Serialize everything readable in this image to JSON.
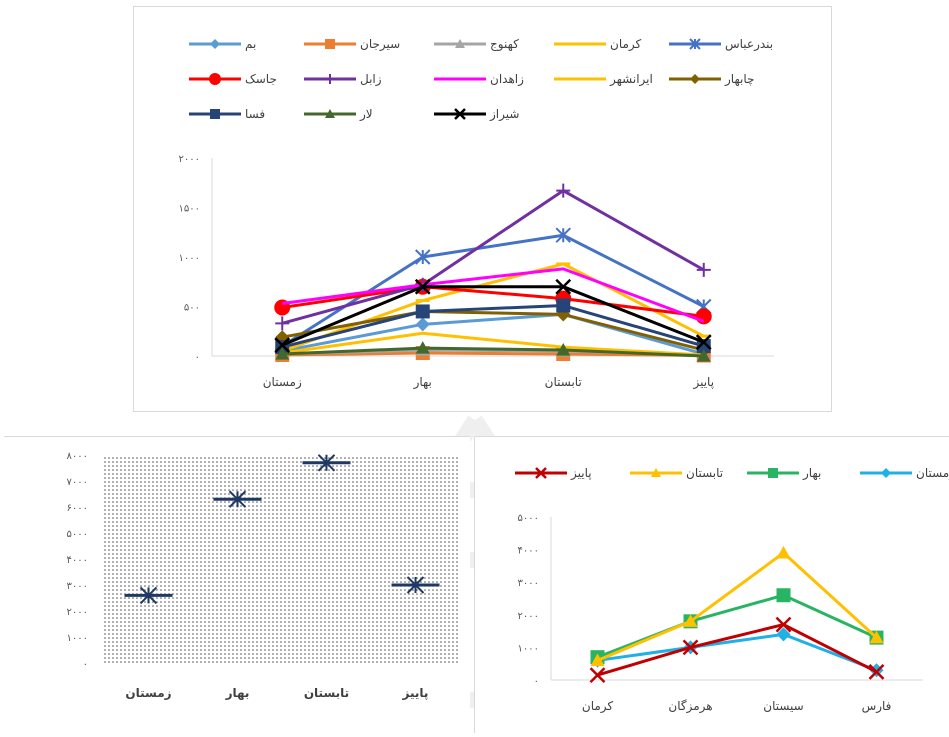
{
  "chart_data": [
    {
      "type": "line",
      "categories": [
        "زمستان",
        "بهار",
        "تابستان",
        "پاییز"
      ],
      "ylim": [
        0,
        2000
      ],
      "yticks": [
        "۰",
        "۵۰۰",
        "۱۰۰۰",
        "۱۵۰۰",
        "۲۰۰۰"
      ],
      "legend_position": "top",
      "series": [
        {
          "name": "بم",
          "color": "#5b9bd5",
          "marker": "diamond",
          "values": [
            50,
            320,
            420,
            20
          ]
        },
        {
          "name": "سیرجان",
          "color": "#ed7d31",
          "marker": "square",
          "values": [
            10,
            30,
            20,
            5
          ]
        },
        {
          "name": "کهنوج",
          "color": "#a5a5a5",
          "marker": "triangle",
          "values": [
            20,
            60,
            50,
            10
          ]
        },
        {
          "name": "کرمان",
          "color": "#ffc000",
          "marker": "dash",
          "values": [
            50,
            560,
            930,
            200
          ]
        },
        {
          "name": "بندرعباس",
          "color": "#4472c4",
          "marker": "star",
          "values": [
            100,
            1000,
            1220,
            500
          ]
        },
        {
          "name": "جاسک",
          "color": "#ff0000",
          "marker": "circle",
          "values": [
            490,
            700,
            580,
            400
          ]
        },
        {
          "name": "زابل",
          "color": "#7030a0",
          "marker": "plus",
          "values": [
            330,
            720,
            1670,
            870
          ]
        },
        {
          "name": "زاهدان",
          "color": "#ff00ff",
          "marker": "none",
          "values": [
            530,
            720,
            880,
            350
          ]
        },
        {
          "name": "ایرانشهر",
          "color": "#ffc000",
          "marker": "none",
          "values": [
            30,
            230,
            90,
            10
          ]
        },
        {
          "name": "چابهار",
          "color": "#806000",
          "marker": "diamond",
          "values": [
            190,
            450,
            420,
            60
          ]
        },
        {
          "name": "فسا",
          "color": "#264478",
          "marker": "square",
          "values": [
            90,
            450,
            510,
            100
          ]
        },
        {
          "name": "لار",
          "color": "#43682b",
          "marker": "triangle",
          "values": [
            20,
            80,
            60,
            0
          ]
        },
        {
          "name": "شیراز",
          "color": "#000000",
          "marker": "x",
          "values": [
            110,
            700,
            700,
            140
          ]
        }
      ]
    },
    {
      "type": "scatter",
      "categories": [
        "زمستان",
        "بهار",
        "تابستان",
        "پاییز"
      ],
      "values": [
        2600,
        6300,
        7700,
        3000
      ],
      "ylim": [
        0,
        8000
      ],
      "yticks": [
        "۰",
        "۱۰۰۰",
        "۲۰۰۰",
        "۳۰۰۰",
        "۴۰۰۰",
        "۵۰۰۰",
        "۶۰۰۰",
        "۷۰۰۰",
        "۸۰۰۰"
      ],
      "color": "#1f3864",
      "marker": "star"
    },
    {
      "type": "line",
      "categories": [
        "کرمان",
        "هرمزگان",
        "سیستان",
        "فارس"
      ],
      "ylim": [
        0,
        5000
      ],
      "yticks": [
        "۰",
        "۱۰۰۰",
        "۲۰۰۰",
        "۳۰۰۰",
        "۴۰۰۰",
        "۵۰۰۰"
      ],
      "legend_position": "top",
      "series": [
        {
          "name": "زمستان",
          "color": "#1fb0e6",
          "marker": "diamond",
          "values": [
            600,
            1000,
            1400,
            300
          ]
        },
        {
          "name": "بهار",
          "color": "#28b463",
          "marker": "square",
          "values": [
            700,
            1800,
            2600,
            1300
          ]
        },
        {
          "name": "تابستان",
          "color": "#ffc000",
          "marker": "triangle",
          "values": [
            600,
            1800,
            3900,
            1300
          ]
        },
        {
          "name": "پاییز",
          "color": "#c00000",
          "marker": "x",
          "values": [
            150,
            1000,
            1700,
            250
          ]
        }
      ]
    }
  ]
}
